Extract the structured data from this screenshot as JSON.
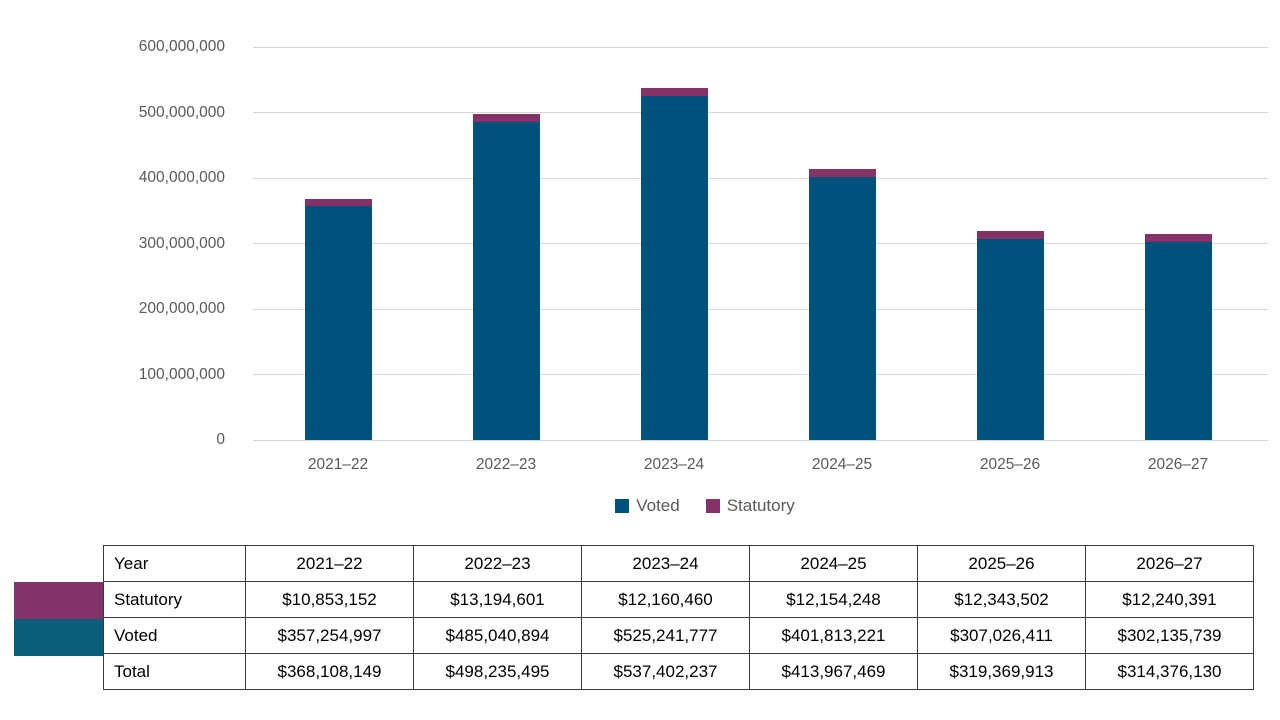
{
  "chart_data": {
    "type": "bar",
    "stacked": true,
    "title": "",
    "xlabel": "",
    "ylabel": "",
    "grid": true,
    "legend_position": "bottom",
    "categories": [
      "2021–22",
      "2022–23",
      "2023–24",
      "2024–25",
      "2025–26",
      "2026–27"
    ],
    "series": [
      {
        "name": "Voted",
        "color": "#00517c",
        "values": [
          357254997,
          485040894,
          525241777,
          401813221,
          307026411,
          302135739
        ]
      },
      {
        "name": "Statutory",
        "color": "#853366",
        "values": [
          10853152,
          13194601,
          12160460,
          12154248,
          12343502,
          12240391
        ]
      }
    ],
    "totals": [
      368108149,
      498235495,
      537402237,
      413967469,
      319369913,
      314376130
    ],
    "ylim": [
      0,
      600000000
    ],
    "ytick_step": 100000000,
    "ytick_labels": [
      "0",
      "100,000,000",
      "200,000,000",
      "300,000,000",
      "400,000,000",
      "500,000,000",
      "600,000,000"
    ]
  },
  "legend": {
    "items": [
      {
        "label": "Voted",
        "color": "#00517c"
      },
      {
        "label": "Statutory",
        "color": "#853366"
      }
    ]
  },
  "table": {
    "header": {
      "label": "Year",
      "columns": [
        "2021–22",
        "2022–23",
        "2023–24",
        "2024–25",
        "2025–26",
        "2026–27"
      ]
    },
    "rows": [
      {
        "label": "Statutory",
        "swatch": "#81336a",
        "values": [
          "$10,853,152",
          "$13,194,601",
          "$12,160,460",
          "$12,154,248",
          "$12,343,502",
          "$12,240,391"
        ]
      },
      {
        "label": "Voted",
        "swatch": "#0b5e78",
        "values": [
          "$357,254,997",
          "$485,040,894",
          "$525,241,777",
          "$401,813,221",
          "$307,026,411",
          "$302,135,739"
        ]
      },
      {
        "label": "Total",
        "swatch": null,
        "values": [
          "$368,108,149",
          "$498,235,495",
          "$537,402,237",
          "$413,967,469",
          "$319,369,913",
          "$314,376,130"
        ]
      }
    ]
  },
  "colors": {
    "grid": "#d6d6d6",
    "axis_text": "#595959",
    "table_border": "#3b3b3b"
  }
}
